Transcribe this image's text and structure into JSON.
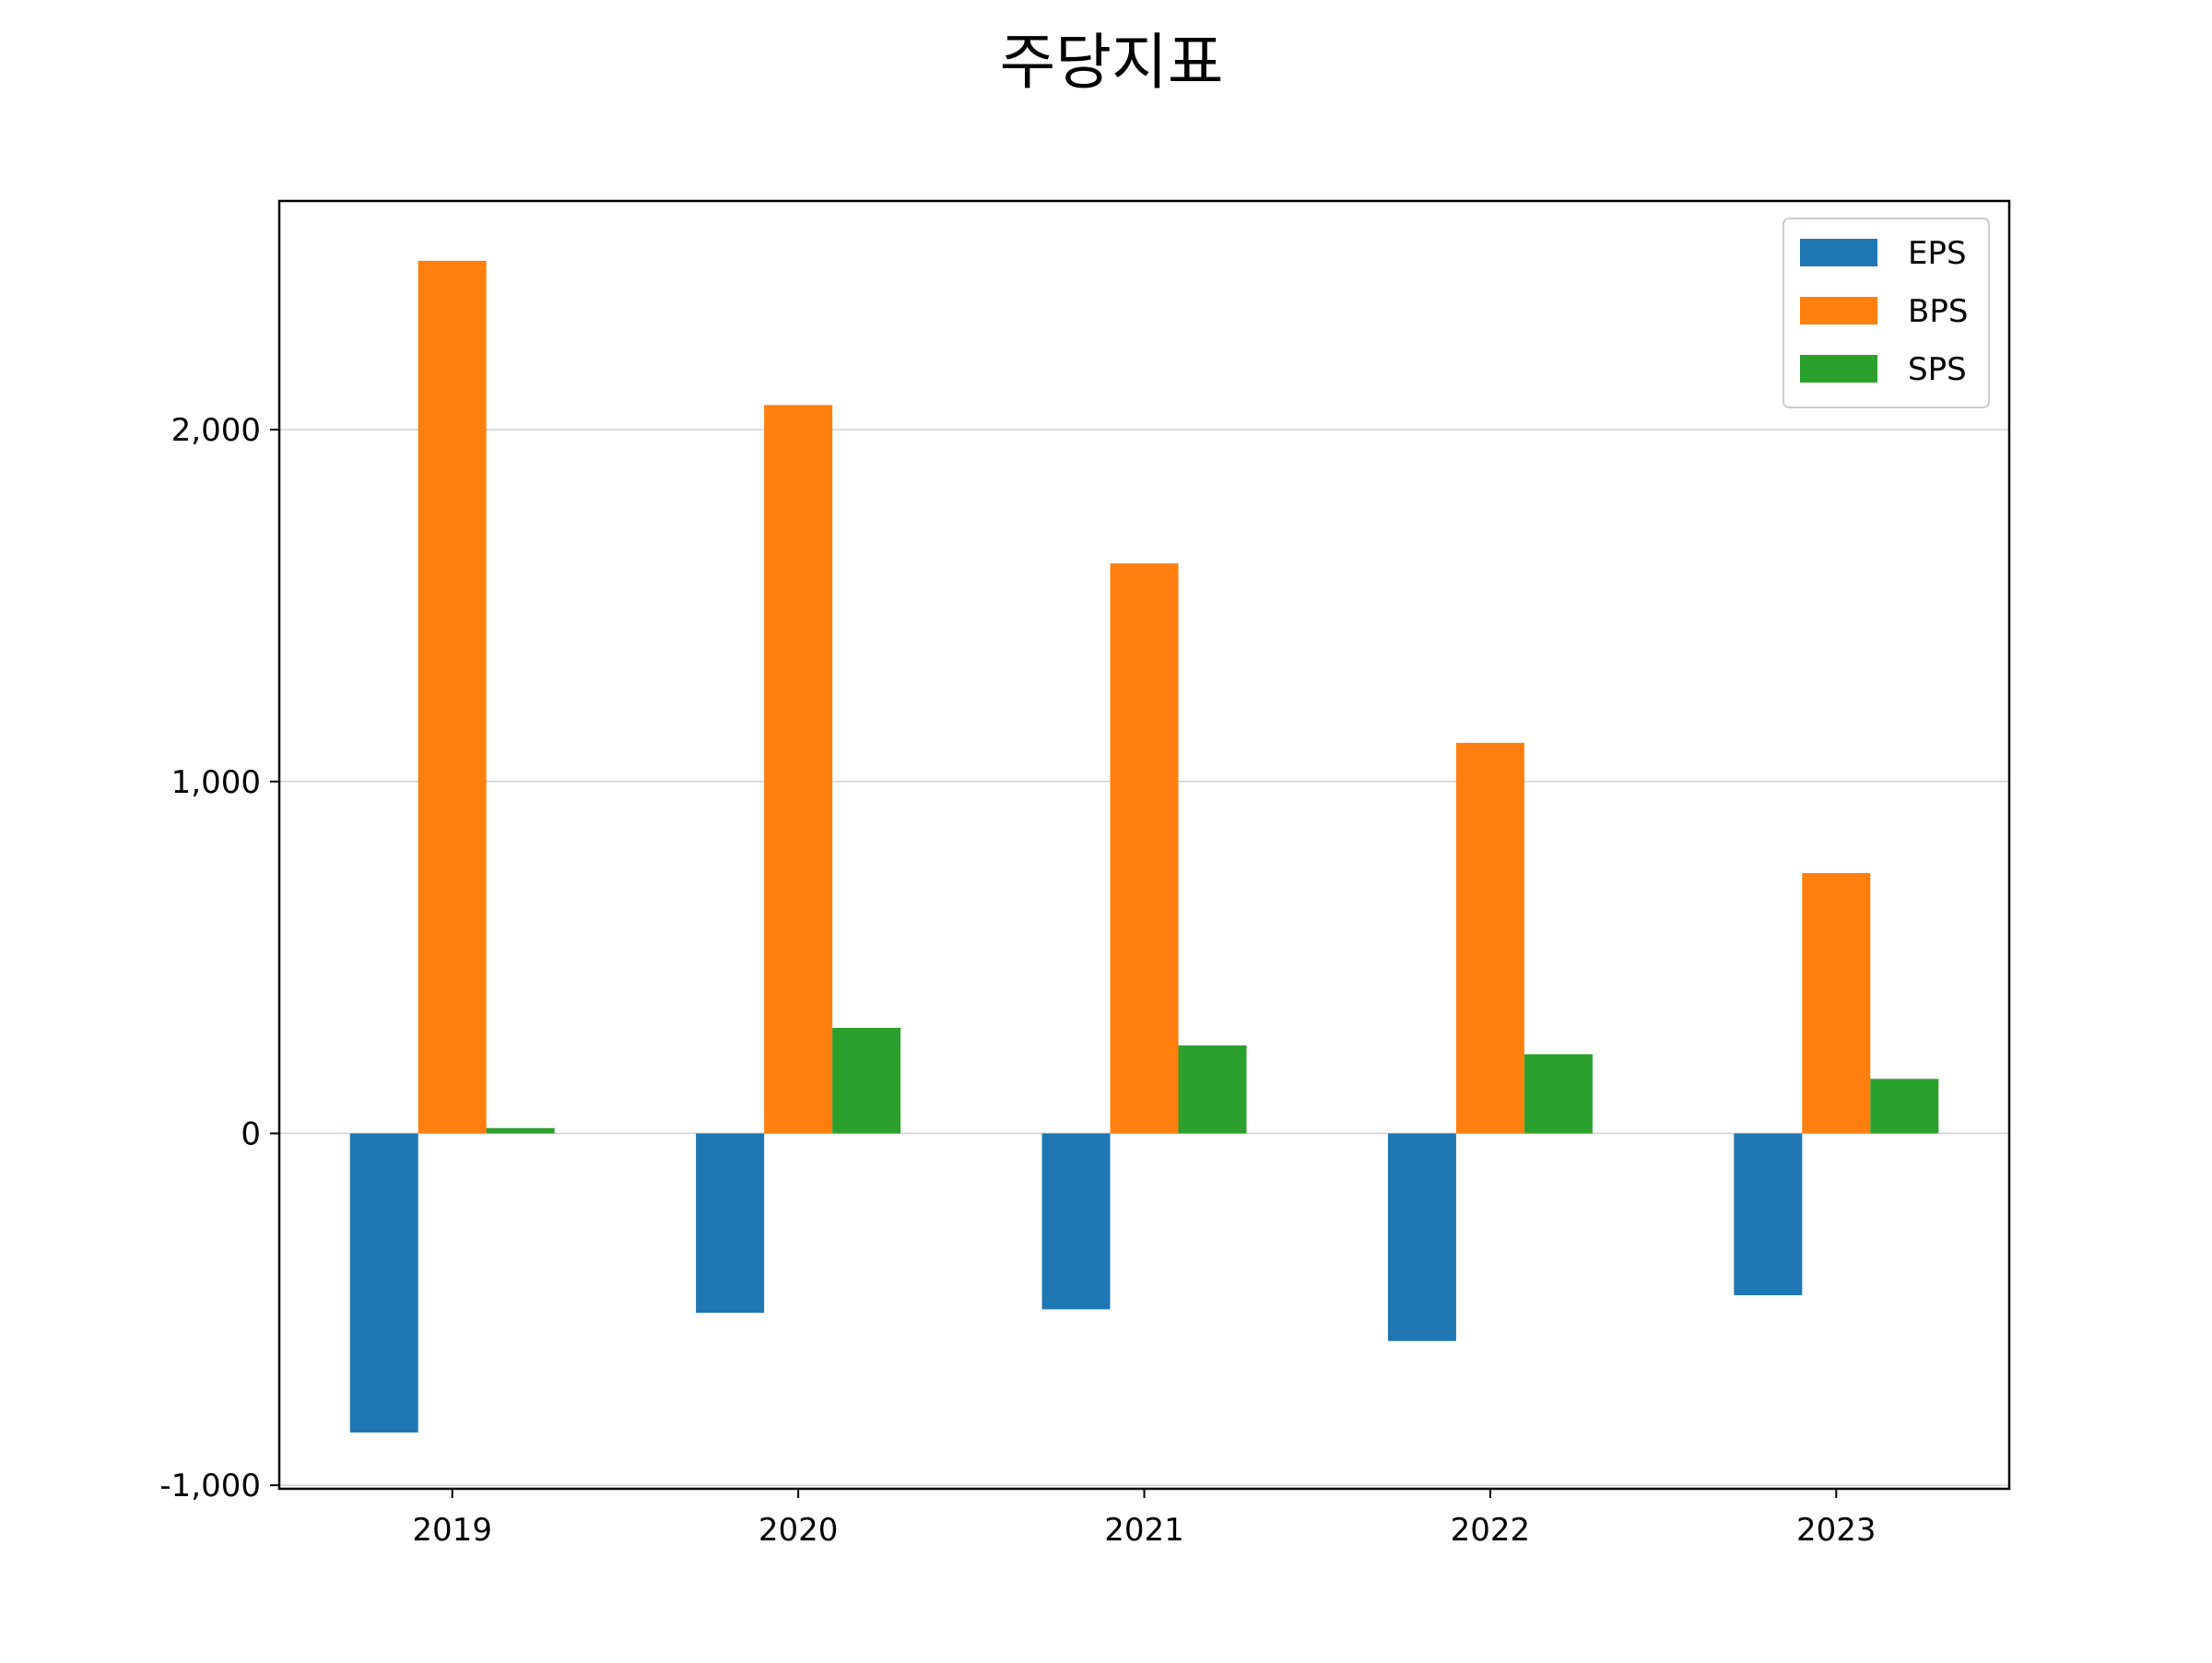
{
  "chart_data": {
    "type": "bar",
    "title": "주당지표",
    "xlabel": "",
    "ylabel": "",
    "categories": [
      "2019",
      "2020",
      "2021",
      "2022",
      "2023"
    ],
    "series": [
      {
        "name": "EPS",
        "color": "#1f77b4",
        "values": [
          -850,
          -510,
          -500,
          -590,
          -460
        ]
      },
      {
        "name": "BPS",
        "color": "#ff7f0e",
        "values": [
          2480,
          2070,
          1620,
          1110,
          740
        ]
      },
      {
        "name": "SPS",
        "color": "#2ca02c",
        "values": [
          15,
          300,
          250,
          225,
          155
        ]
      }
    ],
    "ylim": [
      -1010,
      2650
    ],
    "yticks": [
      -1000,
      0,
      1000,
      2000
    ],
    "ytick_labels": [
      "-1,000",
      "0",
      "1,000",
      "2,000"
    ],
    "grid": "y",
    "legend_position": "top-right"
  }
}
